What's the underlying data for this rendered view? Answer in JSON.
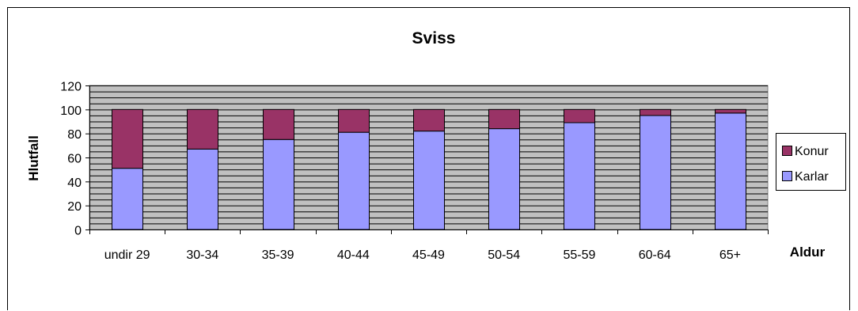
{
  "chart_data": {
    "type": "bar",
    "stacked": true,
    "title": "Sviss",
    "xlabel": "Aldur",
    "ylabel": "Hlutfall",
    "categories": [
      "undir 29",
      "30-34",
      "35-39",
      "40-44",
      "45-49",
      "50-54",
      "55-59",
      "60-64",
      "65+"
    ],
    "ylim": [
      0,
      120
    ],
    "yticks": [
      0,
      20,
      40,
      60,
      80,
      100,
      120
    ],
    "y_minor_step": 5,
    "grid": true,
    "legend_position": "right",
    "series": [
      {
        "name": "Karlar",
        "color": "#9999ff",
        "values": [
          51,
          67,
          75,
          81,
          82,
          84,
          89,
          95,
          97
        ]
      },
      {
        "name": "Konur",
        "color": "#993366",
        "values": [
          49,
          33,
          25,
          19,
          18,
          16,
          11,
          5,
          3
        ]
      }
    ],
    "plot_background": "#c0c0c0"
  }
}
